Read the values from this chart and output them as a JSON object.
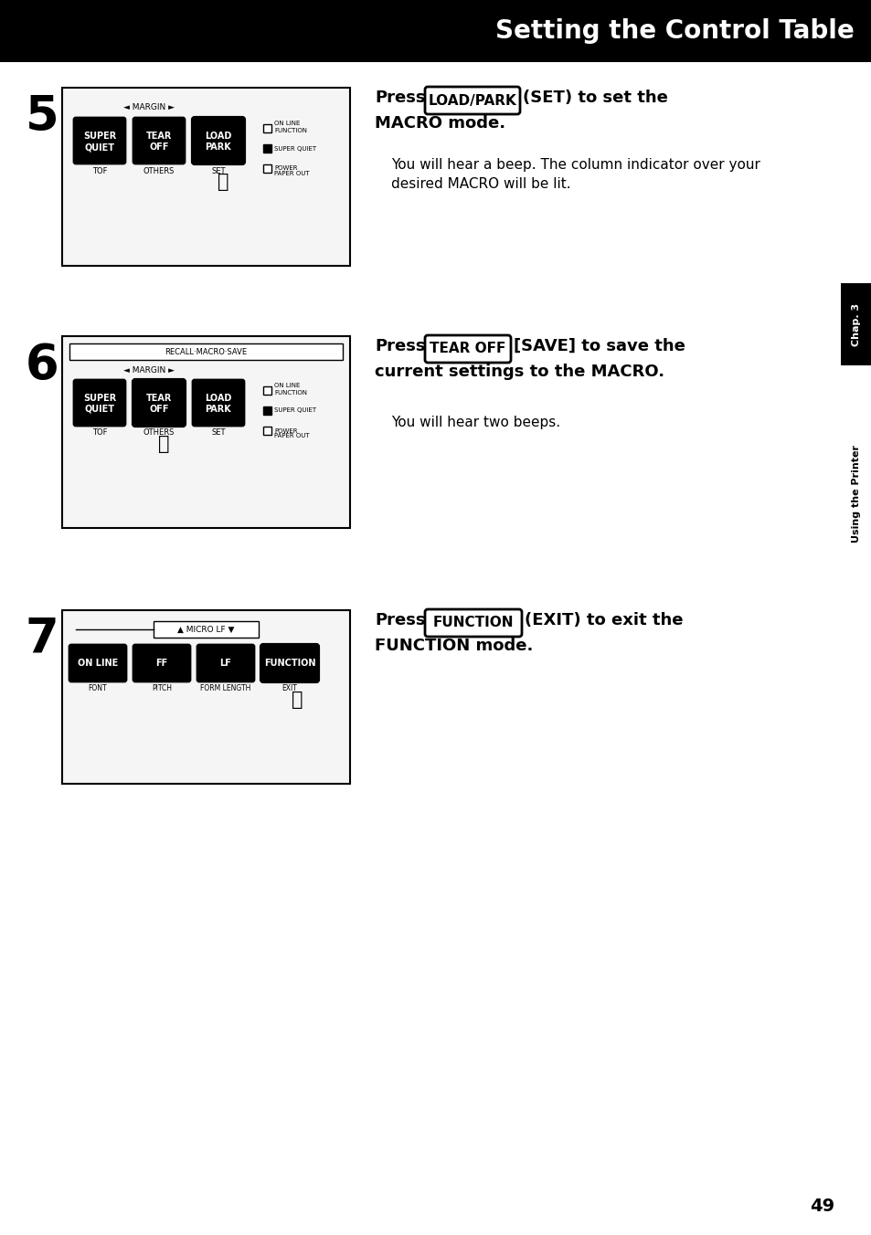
{
  "title": "Setting the Control Table",
  "title_bg": "#000000",
  "title_color": "#ffffff",
  "title_fontsize": 20,
  "page_bg": "#ffffff",
  "page_number": "49",
  "sidebar_text": "Chap. 3",
  "sidebar_text2": "Using the Printer",
  "step5_num": "5",
  "step6_num": "6",
  "step7_num": "7",
  "step5_body": "You will hear a beep. The column indicator over your\ndesired MACRO will be lit.",
  "step6_body": "You will hear two beeps.",
  "diagram_border": "#000000",
  "button_color": "#000000",
  "button_text_color": "#ffffff"
}
